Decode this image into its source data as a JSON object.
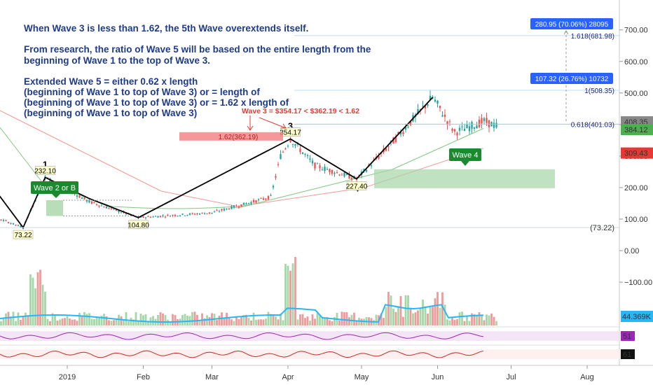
{
  "annotations": {
    "line1": "When Wave 3 is less than 1.62, the 5th Wave overextends itself.",
    "line2a": "From research, the ratio of Wave 5 will be based on the entire length from the",
    "line2b": "beginning of Wave 1 to the top of Wave 3.",
    "line3a": "Extended Wave 5 = either 0.62 x length",
    "line3b": "(beginning of Wave 1 to top of Wave 3) or = length of",
    "line3c": "(beginning of Wave 1 to top of Wave 3) or = 1.62 x length of",
    "line3d": "(beginning of Wave 1 to top of Wave 3)",
    "wave3_formula": "Wave 3 =  $354.17 <  $362.19 < 1.62"
  },
  "colors": {
    "up": "#26a69a",
    "down": "#ef5350",
    "text_blue": "#1e3a8a",
    "label_green": "#1a8a2e",
    "fib_blue": "#2962ff",
    "volume_ma": "#29b6f6",
    "ma_red": "#ef9a9a",
    "ma_green": "#81c784"
  },
  "chart_data": {
    "type": "candlestick",
    "yaxis": {
      "ticks": [
        700,
        600,
        500,
        400,
        300,
        200,
        100,
        0,
        -100
      ],
      "tick_labels": [
        "700.00",
        "600.00",
        "500.00",
        "400.00",
        "300.00",
        "200.00",
        "100.00",
        "0.00",
        "−100.00"
      ],
      "ylim": [
        -200,
        790
      ]
    },
    "xaxis": {
      "ticks": [
        "2019",
        "Feb",
        "Mar",
        "Apr",
        "May",
        "Jun",
        "Jul",
        "Aug"
      ]
    },
    "wave_points": [
      {
        "date": "2018-12-14",
        "price": 73.22,
        "label": "73.22"
      },
      {
        "date": "2018-12-23",
        "price": 232.1,
        "label": "232.10",
        "wave": "1"
      },
      {
        "date": "2019-01-30",
        "price": 104.8,
        "label": "104.80",
        "wave": "2"
      },
      {
        "date": "2019-04-02",
        "price": 354.17,
        "label": "354.17",
        "wave": "3"
      },
      {
        "date": "2019-04-29",
        "price": 227.4,
        "label": "227.40",
        "wave": "4"
      },
      {
        "date": "2019-05-30",
        "price": 486.0
      }
    ],
    "price_tags": [
      {
        "text": "408.35",
        "price": 408.35,
        "color": "#888888"
      },
      {
        "text": "384.12",
        "price": 384.12,
        "color": "#4caf50"
      },
      {
        "text": "309.43",
        "price": 309.43,
        "color": "#e53935"
      }
    ],
    "fib_levels": [
      {
        "label": "1.618(681.98)",
        "price": 681.98
      },
      {
        "label": "1(508.35)",
        "price": 508.35
      },
      {
        "label": "0.618(401.03)",
        "price": 401.03
      }
    ],
    "measure_labels": [
      {
        "text": "280.95 (70.06%) 28095"
      },
      {
        "text": "107.32 (26.76%) 10732"
      }
    ],
    "left_level": {
      "text": "(73.22)",
      "price": 73.22
    },
    "fib_red_box": {
      "label": "1.62(362.19)",
      "price": 362.19
    },
    "green_labels": [
      {
        "text": "Wave 2 or B"
      },
      {
        "text": "Wave 4"
      }
    ],
    "volume": {
      "ma_label": "44.369K"
    },
    "indicator1": {
      "value_label": "51"
    },
    "indicator2": {
      "value_label": "61"
    }
  }
}
